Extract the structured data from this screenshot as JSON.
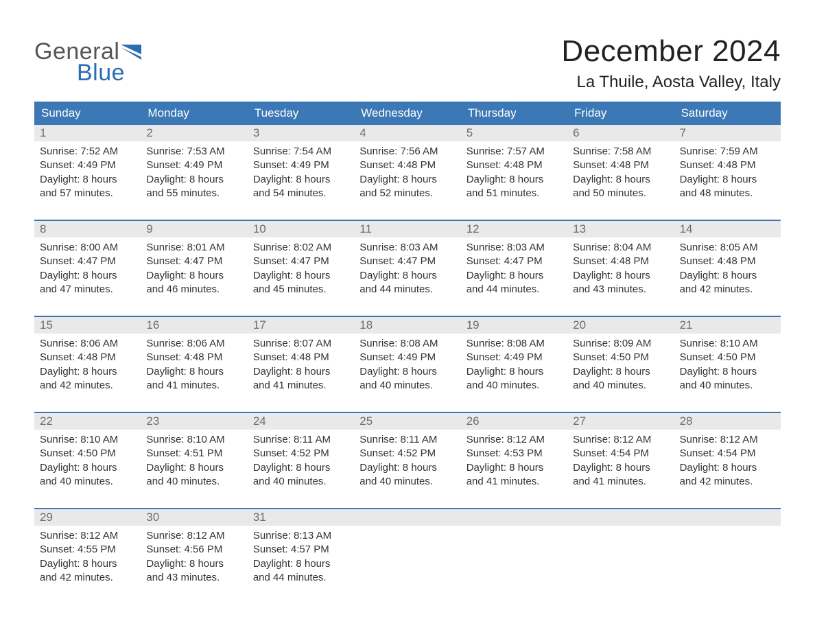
{
  "colors": {
    "header_bg": "#3b78b5",
    "header_text": "#ffffff",
    "daynum_bg": "#e9e9e9",
    "daynum_text": "#6d6d6d",
    "body_text": "#333333",
    "week_border": "#3b78b5",
    "logo_gray": "#555555",
    "logo_blue": "#2a6db3",
    "title_color": "#222222",
    "background": "#ffffff"
  },
  "logo": {
    "word1": "General",
    "word2": "Blue"
  },
  "title": "December 2024",
  "location": "La Thuile, Aosta Valley, Italy",
  "day_names": [
    "Sunday",
    "Monday",
    "Tuesday",
    "Wednesday",
    "Thursday",
    "Friday",
    "Saturday"
  ],
  "weeks": [
    [
      {
        "num": "1",
        "sunrise": "Sunrise: 7:52 AM",
        "sunset": "Sunset: 4:49 PM",
        "d1": "Daylight: 8 hours",
        "d2": "and 57 minutes."
      },
      {
        "num": "2",
        "sunrise": "Sunrise: 7:53 AM",
        "sunset": "Sunset: 4:49 PM",
        "d1": "Daylight: 8 hours",
        "d2": "and 55 minutes."
      },
      {
        "num": "3",
        "sunrise": "Sunrise: 7:54 AM",
        "sunset": "Sunset: 4:49 PM",
        "d1": "Daylight: 8 hours",
        "d2": "and 54 minutes."
      },
      {
        "num": "4",
        "sunrise": "Sunrise: 7:56 AM",
        "sunset": "Sunset: 4:48 PM",
        "d1": "Daylight: 8 hours",
        "d2": "and 52 minutes."
      },
      {
        "num": "5",
        "sunrise": "Sunrise: 7:57 AM",
        "sunset": "Sunset: 4:48 PM",
        "d1": "Daylight: 8 hours",
        "d2": "and 51 minutes."
      },
      {
        "num": "6",
        "sunrise": "Sunrise: 7:58 AM",
        "sunset": "Sunset: 4:48 PM",
        "d1": "Daylight: 8 hours",
        "d2": "and 50 minutes."
      },
      {
        "num": "7",
        "sunrise": "Sunrise: 7:59 AM",
        "sunset": "Sunset: 4:48 PM",
        "d1": "Daylight: 8 hours",
        "d2": "and 48 minutes."
      }
    ],
    [
      {
        "num": "8",
        "sunrise": "Sunrise: 8:00 AM",
        "sunset": "Sunset: 4:47 PM",
        "d1": "Daylight: 8 hours",
        "d2": "and 47 minutes."
      },
      {
        "num": "9",
        "sunrise": "Sunrise: 8:01 AM",
        "sunset": "Sunset: 4:47 PM",
        "d1": "Daylight: 8 hours",
        "d2": "and 46 minutes."
      },
      {
        "num": "10",
        "sunrise": "Sunrise: 8:02 AM",
        "sunset": "Sunset: 4:47 PM",
        "d1": "Daylight: 8 hours",
        "d2": "and 45 minutes."
      },
      {
        "num": "11",
        "sunrise": "Sunrise: 8:03 AM",
        "sunset": "Sunset: 4:47 PM",
        "d1": "Daylight: 8 hours",
        "d2": "and 44 minutes."
      },
      {
        "num": "12",
        "sunrise": "Sunrise: 8:03 AM",
        "sunset": "Sunset: 4:47 PM",
        "d1": "Daylight: 8 hours",
        "d2": "and 44 minutes."
      },
      {
        "num": "13",
        "sunrise": "Sunrise: 8:04 AM",
        "sunset": "Sunset: 4:48 PM",
        "d1": "Daylight: 8 hours",
        "d2": "and 43 minutes."
      },
      {
        "num": "14",
        "sunrise": "Sunrise: 8:05 AM",
        "sunset": "Sunset: 4:48 PM",
        "d1": "Daylight: 8 hours",
        "d2": "and 42 minutes."
      }
    ],
    [
      {
        "num": "15",
        "sunrise": "Sunrise: 8:06 AM",
        "sunset": "Sunset: 4:48 PM",
        "d1": "Daylight: 8 hours",
        "d2": "and 42 minutes."
      },
      {
        "num": "16",
        "sunrise": "Sunrise: 8:06 AM",
        "sunset": "Sunset: 4:48 PM",
        "d1": "Daylight: 8 hours",
        "d2": "and 41 minutes."
      },
      {
        "num": "17",
        "sunrise": "Sunrise: 8:07 AM",
        "sunset": "Sunset: 4:48 PM",
        "d1": "Daylight: 8 hours",
        "d2": "and 41 minutes."
      },
      {
        "num": "18",
        "sunrise": "Sunrise: 8:08 AM",
        "sunset": "Sunset: 4:49 PM",
        "d1": "Daylight: 8 hours",
        "d2": "and 40 minutes."
      },
      {
        "num": "19",
        "sunrise": "Sunrise: 8:08 AM",
        "sunset": "Sunset: 4:49 PM",
        "d1": "Daylight: 8 hours",
        "d2": "and 40 minutes."
      },
      {
        "num": "20",
        "sunrise": "Sunrise: 8:09 AM",
        "sunset": "Sunset: 4:50 PM",
        "d1": "Daylight: 8 hours",
        "d2": "and 40 minutes."
      },
      {
        "num": "21",
        "sunrise": "Sunrise: 8:10 AM",
        "sunset": "Sunset: 4:50 PM",
        "d1": "Daylight: 8 hours",
        "d2": "and 40 minutes."
      }
    ],
    [
      {
        "num": "22",
        "sunrise": "Sunrise: 8:10 AM",
        "sunset": "Sunset: 4:50 PM",
        "d1": "Daylight: 8 hours",
        "d2": "and 40 minutes."
      },
      {
        "num": "23",
        "sunrise": "Sunrise: 8:10 AM",
        "sunset": "Sunset: 4:51 PM",
        "d1": "Daylight: 8 hours",
        "d2": "and 40 minutes."
      },
      {
        "num": "24",
        "sunrise": "Sunrise: 8:11 AM",
        "sunset": "Sunset: 4:52 PM",
        "d1": "Daylight: 8 hours",
        "d2": "and 40 minutes."
      },
      {
        "num": "25",
        "sunrise": "Sunrise: 8:11 AM",
        "sunset": "Sunset: 4:52 PM",
        "d1": "Daylight: 8 hours",
        "d2": "and 40 minutes."
      },
      {
        "num": "26",
        "sunrise": "Sunrise: 8:12 AM",
        "sunset": "Sunset: 4:53 PM",
        "d1": "Daylight: 8 hours",
        "d2": "and 41 minutes."
      },
      {
        "num": "27",
        "sunrise": "Sunrise: 8:12 AM",
        "sunset": "Sunset: 4:54 PM",
        "d1": "Daylight: 8 hours",
        "d2": "and 41 minutes."
      },
      {
        "num": "28",
        "sunrise": "Sunrise: 8:12 AM",
        "sunset": "Sunset: 4:54 PM",
        "d1": "Daylight: 8 hours",
        "d2": "and 42 minutes."
      }
    ],
    [
      {
        "num": "29",
        "sunrise": "Sunrise: 8:12 AM",
        "sunset": "Sunset: 4:55 PM",
        "d1": "Daylight: 8 hours",
        "d2": "and 42 minutes."
      },
      {
        "num": "30",
        "sunrise": "Sunrise: 8:12 AM",
        "sunset": "Sunset: 4:56 PM",
        "d1": "Daylight: 8 hours",
        "d2": "and 43 minutes."
      },
      {
        "num": "31",
        "sunrise": "Sunrise: 8:13 AM",
        "sunset": "Sunset: 4:57 PM",
        "d1": "Daylight: 8 hours",
        "d2": "and 44 minutes."
      },
      null,
      null,
      null,
      null
    ]
  ]
}
